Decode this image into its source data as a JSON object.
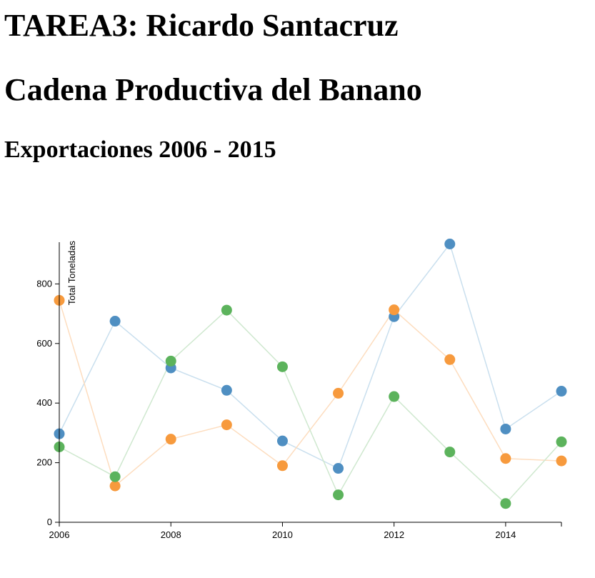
{
  "page": {
    "title_1": "TAREA3: Ricardo Santacruz",
    "title_2": "Cadena Productiva del Banano",
    "subtitle": "Exportaciones 2006 - 2015"
  },
  "chart_data": {
    "type": "line",
    "x": [
      2006,
      2007,
      2008,
      2009,
      2010,
      2011,
      2012,
      2013,
      2014,
      2015
    ],
    "xticks": [
      2006,
      2008,
      2010,
      2012,
      2014
    ],
    "yticks": [
      0,
      200,
      400,
      600,
      800
    ],
    "xlim": [
      2006,
      2015
    ],
    "ylim": [
      0,
      940
    ],
    "ylabel": "Total Toneladas",
    "xlabel": "",
    "grid": false,
    "legend": "none",
    "series": [
      {
        "color": "#4f8fc2",
        "line_color": "#c9dfee",
        "values": [
          297,
          675,
          518,
          443,
          273,
          181,
          690,
          934,
          313,
          440
        ]
      },
      {
        "color": "#f79a3d",
        "line_color": "#fdddbf",
        "values": [
          745,
          122,
          279,
          327,
          190,
          433,
          713,
          546,
          214,
          206
        ]
      },
      {
        "color": "#5cb35c",
        "line_color": "#cfe8cf",
        "values": [
          253,
          153,
          541,
          712,
          522,
          92,
          422,
          236,
          63,
          270
        ]
      }
    ]
  }
}
